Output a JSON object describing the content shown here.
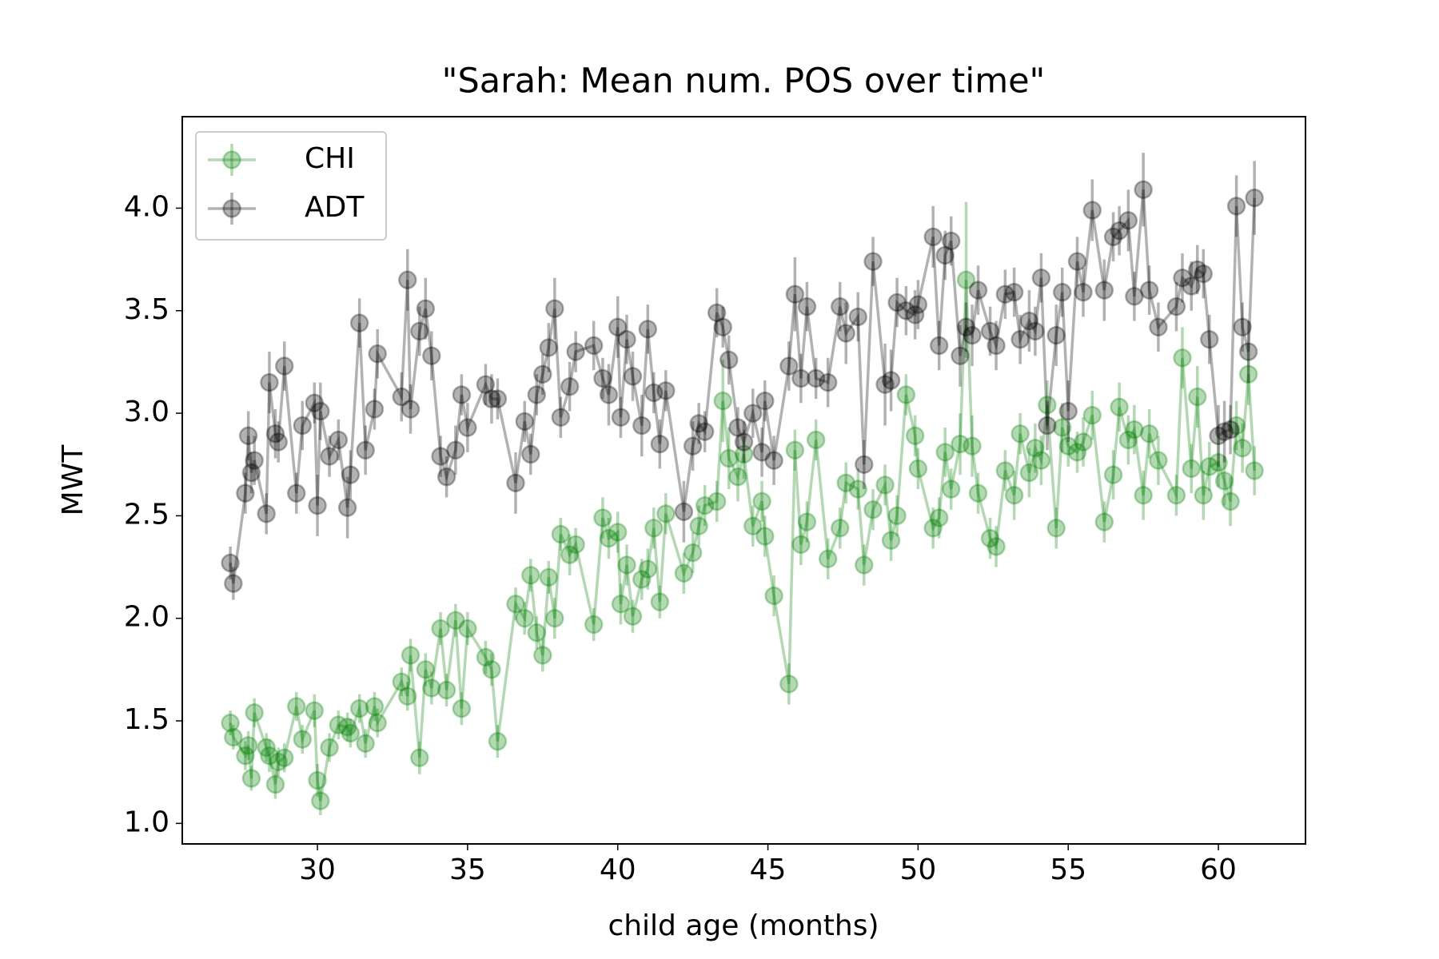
{
  "chart_data": {
    "type": "errorbar",
    "title": "\"Sarah: Mean num. POS over time\"",
    "xlabel": "child age (months)",
    "ylabel": "MWT",
    "x": [
      27.1,
      27.2,
      27.6,
      27.7,
      27.8,
      27.9,
      28.3,
      28.4,
      28.6,
      28.7,
      28.9,
      29.3,
      29.5,
      29.9,
      30.0,
      30.1,
      30.4,
      30.7,
      31.0,
      31.1,
      31.4,
      31.6,
      31.9,
      32.0,
      32.8,
      33.0,
      33.1,
      33.4,
      33.6,
      33.8,
      34.1,
      34.3,
      34.6,
      34.8,
      35.0,
      35.6,
      35.8,
      36.0,
      36.6,
      36.9,
      37.1,
      37.3,
      37.5,
      37.7,
      37.9,
      38.1,
      38.4,
      38.6,
      39.2,
      39.5,
      39.7,
      40.0,
      40.1,
      40.3,
      40.5,
      40.8,
      41.0,
      41.2,
      41.4,
      41.6,
      42.2,
      42.5,
      42.7,
      42.9,
      43.3,
      43.5,
      43.7,
      44.0,
      44.2,
      44.5,
      44.8,
      44.9,
      45.2,
      45.7,
      45.9,
      46.1,
      46.3,
      46.6,
      47.0,
      47.4,
      47.6,
      48.0,
      48.2,
      48.5,
      48.9,
      49.1,
      49.3,
      49.6,
      49.9,
      50.0,
      50.5,
      50.7,
      50.9,
      51.1,
      51.4,
      51.6,
      51.8,
      52.0,
      52.4,
      52.6,
      52.9,
      53.2,
      53.4,
      53.7,
      53.9,
      54.1,
      54.3,
      54.6,
      54.8,
      55.0,
      55.3,
      55.5,
      55.8,
      56.2,
      56.5,
      56.7,
      57.0,
      57.2,
      57.5,
      57.7,
      58.0,
      58.6,
      58.8,
      59.1,
      59.3,
      59.5,
      59.7,
      60.0,
      60.2,
      60.4,
      60.6,
      60.8,
      61.0,
      61.2
    ],
    "series": [
      {
        "name": "CHI",
        "color": "green",
        "values": [
          1.49,
          1.42,
          1.33,
          1.38,
          1.22,
          1.54,
          1.37,
          1.33,
          1.19,
          1.3,
          1.32,
          1.57,
          1.41,
          1.55,
          1.21,
          1.11,
          1.37,
          1.48,
          1.47,
          1.44,
          1.56,
          1.39,
          1.57,
          1.49,
          1.69,
          1.62,
          1.82,
          1.32,
          1.75,
          1.66,
          1.95,
          1.65,
          1.99,
          1.56,
          1.95,
          1.81,
          1.75,
          1.4,
          2.07,
          2.0,
          2.21,
          1.93,
          1.82,
          2.2,
          2.0,
          2.41,
          2.31,
          2.36,
          1.97,
          2.49,
          2.39,
          2.42,
          2.07,
          2.26,
          2.01,
          2.19,
          2.24,
          2.44,
          2.08,
          2.51,
          2.22,
          2.32,
          2.45,
          2.55,
          2.57,
          3.06,
          2.78,
          2.69,
          2.8,
          2.45,
          2.57,
          2.4,
          2.11,
          1.68,
          2.82,
          2.36,
          2.47,
          2.87,
          2.29,
          2.44,
          2.66,
          2.63,
          2.26,
          2.53,
          2.65,
          2.38,
          2.5,
          3.09,
          2.89,
          2.73,
          2.44,
          2.49,
          2.81,
          2.63,
          2.85,
          3.65,
          2.84,
          2.61,
          2.39,
          2.35,
          2.72,
          2.6,
          2.9,
          2.71,
          2.83,
          2.77,
          3.04,
          2.44,
          2.93,
          2.84,
          2.81,
          2.86,
          2.99,
          2.47,
          2.7,
          3.03,
          2.87,
          2.92,
          2.6,
          2.9,
          2.77,
          2.6,
          3.27,
          2.73,
          3.08,
          2.6,
          2.74,
          2.76,
          2.67,
          2.57,
          2.94,
          2.83,
          3.19,
          2.72
        ],
        "errors": [
          0.06,
          0.06,
          0.07,
          0.07,
          0.06,
          0.07,
          0.07,
          0.08,
          0.07,
          0.07,
          0.07,
          0.07,
          0.07,
          0.08,
          0.08,
          0.07,
          0.07,
          0.07,
          0.07,
          0.07,
          0.07,
          0.07,
          0.07,
          0.07,
          0.07,
          0.07,
          0.08,
          0.08,
          0.08,
          0.08,
          0.08,
          0.08,
          0.08,
          0.08,
          0.08,
          0.08,
          0.08,
          0.08,
          0.08,
          0.08,
          0.08,
          0.08,
          0.08,
          0.08,
          0.1,
          0.08,
          0.1,
          0.08,
          0.08,
          0.1,
          0.1,
          0.1,
          0.1,
          0.1,
          0.08,
          0.1,
          0.1,
          0.1,
          0.08,
          0.1,
          0.1,
          0.1,
          0.1,
          0.1,
          0.1,
          0.2,
          0.15,
          0.12,
          0.12,
          0.1,
          0.1,
          0.1,
          0.1,
          0.1,
          0.1,
          0.1,
          0.1,
          0.1,
          0.1,
          0.1,
          0.1,
          0.1,
          0.1,
          0.1,
          0.1,
          0.1,
          0.1,
          0.1,
          0.1,
          0.1,
          0.1,
          0.1,
          0.12,
          0.1,
          0.15,
          0.38,
          0.15,
          0.1,
          0.1,
          0.1,
          0.1,
          0.12,
          0.1,
          0.12,
          0.12,
          0.12,
          0.12,
          0.1,
          0.12,
          0.1,
          0.1,
          0.12,
          0.12,
          0.1,
          0.12,
          0.12,
          0.12,
          0.12,
          0.12,
          0.12,
          0.12,
          0.1,
          0.15,
          0.12,
          0.15,
          0.12,
          0.12,
          0.12,
          0.12,
          0.12,
          0.12,
          0.12,
          0.15,
          0.12
        ]
      },
      {
        "name": "ADT",
        "color": "black",
        "values": [
          2.27,
          2.17,
          2.61,
          2.89,
          2.71,
          2.77,
          2.51,
          3.15,
          2.9,
          2.86,
          3.23,
          2.61,
          2.94,
          3.05,
          2.55,
          3.01,
          2.79,
          2.87,
          2.54,
          2.7,
          3.44,
          2.82,
          3.02,
          3.29,
          3.08,
          3.65,
          3.02,
          3.4,
          3.51,
          3.28,
          2.79,
          2.69,
          2.82,
          3.09,
          2.93,
          3.14,
          3.07,
          3.07,
          2.66,
          2.96,
          2.8,
          3.09,
          3.19,
          3.32,
          3.51,
          2.98,
          3.13,
          3.3,
          3.33,
          3.17,
          3.09,
          3.42,
          2.98,
          3.36,
          3.18,
          2.94,
          3.41,
          3.1,
          2.85,
          3.11,
          2.52,
          2.84,
          2.95,
          2.91,
          3.49,
          3.42,
          3.26,
          2.93,
          2.86,
          3.0,
          2.81,
          3.06,
          2.77,
          3.23,
          3.58,
          3.17,
          3.52,
          3.17,
          3.15,
          3.52,
          3.39,
          3.47,
          2.75,
          3.74,
          3.14,
          3.16,
          3.54,
          3.5,
          3.48,
          3.53,
          3.86,
          3.33,
          3.77,
          3.84,
          3.28,
          3.42,
          3.38,
          3.6,
          3.4,
          3.33,
          3.58,
          3.59,
          3.36,
          3.45,
          3.4,
          3.66,
          2.94,
          3.38,
          3.59,
          3.01,
          3.74,
          3.59,
          3.99,
          3.6,
          3.86,
          3.89,
          3.94,
          3.57,
          4.09,
          3.6,
          3.42,
          3.52,
          3.66,
          3.62,
          3.7,
          3.68,
          3.36,
          2.89,
          2.91,
          2.92,
          4.01,
          3.42,
          3.3,
          4.05
        ],
        "errors": [
          0.08,
          0.08,
          0.1,
          0.12,
          0.1,
          0.12,
          0.1,
          0.15,
          0.12,
          0.1,
          0.12,
          0.1,
          0.12,
          0.1,
          0.15,
          0.14,
          0.1,
          0.1,
          0.15,
          0.12,
          0.12,
          0.12,
          0.1,
          0.12,
          0.12,
          0.15,
          0.12,
          0.12,
          0.15,
          0.12,
          0.1,
          0.1,
          0.12,
          0.1,
          0.12,
          0.1,
          0.12,
          0.1,
          0.15,
          0.1,
          0.1,
          0.1,
          0.1,
          0.12,
          0.15,
          0.1,
          0.12,
          0.1,
          0.12,
          0.1,
          0.15,
          0.15,
          0.1,
          0.12,
          0.12,
          0.15,
          0.12,
          0.1,
          0.12,
          0.1,
          0.15,
          0.12,
          0.1,
          0.1,
          0.12,
          0.1,
          0.12,
          0.1,
          0.1,
          0.12,
          0.12,
          0.1,
          0.12,
          0.12,
          0.18,
          0.12,
          0.12,
          0.1,
          0.12,
          0.12,
          0.15,
          0.12,
          0.12,
          0.12,
          0.2,
          0.15,
          0.12,
          0.12,
          0.12,
          0.12,
          0.15,
          0.12,
          0.12,
          0.12,
          0.15,
          0.12,
          0.15,
          0.12,
          0.12,
          0.12,
          0.12,
          0.12,
          0.12,
          0.15,
          0.12,
          0.12,
          0.12,
          0.15,
          0.12,
          0.15,
          0.12,
          0.12,
          0.15,
          0.15,
          0.12,
          0.12,
          0.15,
          0.12,
          0.18,
          0.12,
          0.12,
          0.12,
          0.12,
          0.12,
          0.12,
          0.12,
          0.12,
          0.15,
          0.15,
          0.12,
          0.15,
          0.12,
          0.15,
          0.18
        ]
      }
    ],
    "xlim": [
      25.5,
      62.9
    ],
    "ylim": [
      0.9,
      4.446
    ],
    "xticks": [
      30,
      35,
      40,
      45,
      50,
      55,
      60
    ],
    "yticks": [
      {
        "value": 1,
        "label": "1.0"
      },
      {
        "value": 1.5,
        "label": "1.5"
      },
      {
        "value": 2,
        "label": "2.0"
      },
      {
        "value": 2.5,
        "label": "2.5"
      },
      {
        "value": 3,
        "label": "3.0"
      },
      {
        "value": 3.5,
        "label": "3.5"
      },
      {
        "value": 4,
        "label": "4.0"
      }
    ],
    "legend": "upper left",
    "alpha": 0.3
  }
}
